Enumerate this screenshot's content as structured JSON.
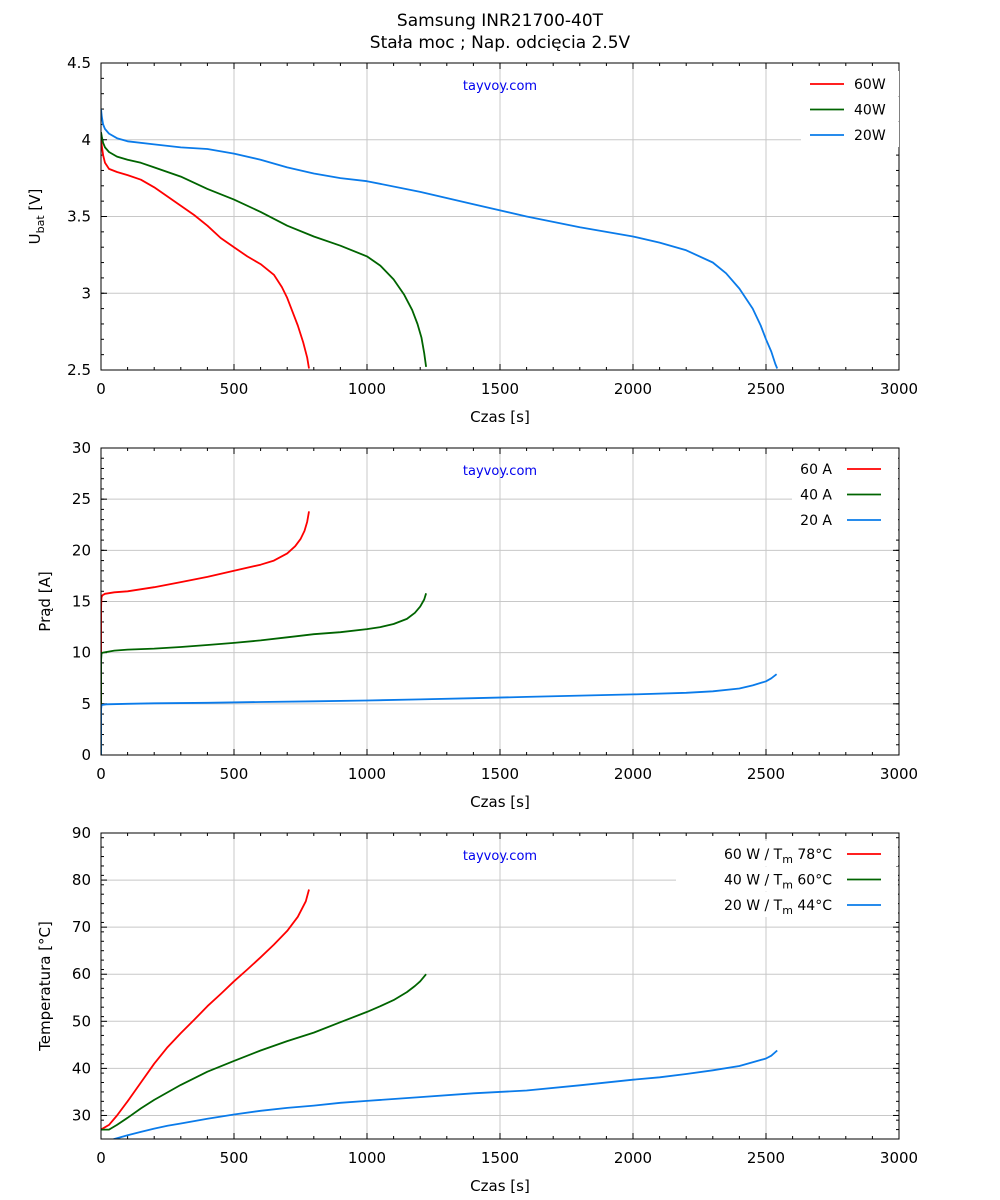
{
  "title_line1": "Samsung INR21700-40T",
  "title_line2": "Stała moc  ;  Nap. odcięcia 2.5V",
  "colors": {
    "red": "#ff0000",
    "green": "#006400",
    "blue": "#0a7bea",
    "grid": "#c8c8c8",
    "watermark": "#0000ee"
  },
  "chart_data": [
    {
      "type": "line",
      "ylabel_main": "U",
      "ylabel_sub": "bat",
      "ylabel_suffix": " [V]",
      "xlabel": "Czas [s]",
      "watermark": "tayvoy.com",
      "xlim": [
        0,
        3000
      ],
      "ylim": [
        2.5,
        4.5
      ],
      "xticks": [
        0,
        500,
        1000,
        1500,
        2000,
        2500,
        3000
      ],
      "yticks": [
        2.5,
        3,
        3.5,
        4,
        4.5
      ],
      "ytick_labels": [
        "2.5",
        "3",
        "3.5",
        "4",
        "4.5"
      ],
      "grid": true,
      "legend_position": "top-right",
      "series": [
        {
          "name": "60W",
          "color": "red",
          "x": [
            0,
            3,
            8,
            15,
            30,
            60,
            100,
            150,
            200,
            250,
            300,
            350,
            400,
            450,
            500,
            550,
            600,
            650,
            680,
            700,
            720,
            740,
            760,
            775,
            782
          ],
          "y": [
            4.0,
            3.96,
            3.9,
            3.85,
            3.81,
            3.79,
            3.77,
            3.74,
            3.69,
            3.63,
            3.57,
            3.51,
            3.44,
            3.36,
            3.3,
            3.24,
            3.19,
            3.12,
            3.04,
            2.97,
            2.88,
            2.79,
            2.68,
            2.58,
            2.51
          ]
        },
        {
          "name": "40W",
          "color": "green",
          "x": [
            0,
            3,
            8,
            15,
            30,
            60,
            100,
            150,
            200,
            300,
            400,
            500,
            600,
            700,
            800,
            900,
            1000,
            1050,
            1100,
            1140,
            1170,
            1190,
            1205,
            1215,
            1222
          ],
          "y": [
            4.05,
            4.02,
            3.98,
            3.95,
            3.92,
            3.89,
            3.87,
            3.85,
            3.82,
            3.76,
            3.68,
            3.61,
            3.53,
            3.44,
            3.37,
            3.31,
            3.24,
            3.18,
            3.09,
            2.99,
            2.89,
            2.8,
            2.71,
            2.61,
            2.52
          ]
        },
        {
          "name": "20W",
          "color": "blue",
          "x": [
            0,
            3,
            8,
            15,
            30,
            60,
            100,
            200,
            300,
            400,
            500,
            600,
            700,
            800,
            900,
            1000,
            1200,
            1400,
            1600,
            1800,
            2000,
            2100,
            2200,
            2300,
            2350,
            2400,
            2450,
            2480,
            2500,
            2520,
            2535,
            2542
          ],
          "y": [
            4.2,
            4.15,
            4.1,
            4.07,
            4.04,
            4.01,
            3.99,
            3.97,
            3.95,
            3.94,
            3.91,
            3.87,
            3.82,
            3.78,
            3.75,
            3.73,
            3.66,
            3.58,
            3.5,
            3.43,
            3.37,
            3.33,
            3.28,
            3.2,
            3.13,
            3.03,
            2.9,
            2.79,
            2.7,
            2.62,
            2.54,
            2.51
          ]
        }
      ]
    },
    {
      "type": "line",
      "ylabel_main": "Prąd [A]",
      "xlabel": "Czas [s]",
      "watermark": "tayvoy.com",
      "xlim": [
        0,
        3000
      ],
      "ylim": [
        0,
        30
      ],
      "xticks": [
        0,
        500,
        1000,
        1500,
        2000,
        2500,
        3000
      ],
      "yticks": [
        0,
        5,
        10,
        15,
        20,
        25,
        30
      ],
      "ytick_labels": [
        "0",
        "5",
        "10",
        "15",
        "20",
        "25",
        "30"
      ],
      "grid": true,
      "legend_position": "top-right",
      "series": [
        {
          "name": "60 A",
          "color": "red",
          "x": [
            0,
            0.5,
            2,
            5,
            15,
            50,
            100,
            200,
            300,
            400,
            500,
            600,
            650,
            700,
            730,
            750,
            765,
            775,
            782
          ],
          "y": [
            0,
            14.5,
            15.4,
            15.6,
            15.75,
            15.9,
            16.0,
            16.4,
            16.9,
            17.4,
            18.0,
            18.6,
            19.0,
            19.7,
            20.4,
            21.1,
            21.9,
            22.8,
            23.8
          ]
        },
        {
          "name": "40 A",
          "color": "green",
          "x": [
            0,
            0.5,
            2,
            5,
            15,
            50,
            100,
            200,
            300,
            400,
            500,
            600,
            700,
            800,
            900,
            1000,
            1050,
            1100,
            1150,
            1180,
            1200,
            1215,
            1222
          ],
          "y": [
            0,
            9.3,
            9.9,
            10.0,
            10.05,
            10.2,
            10.3,
            10.4,
            10.55,
            10.75,
            10.95,
            11.2,
            11.5,
            11.8,
            12.0,
            12.3,
            12.5,
            12.8,
            13.3,
            13.9,
            14.5,
            15.2,
            15.8
          ]
        },
        {
          "name": "20 A",
          "color": "blue",
          "x": [
            0,
            0.5,
            2,
            5,
            20,
            100,
            200,
            400,
            600,
            800,
            1000,
            1200,
            1400,
            1600,
            1800,
            2000,
            2200,
            2300,
            2400,
            2450,
            2500,
            2520,
            2540
          ],
          "y": [
            0,
            4.5,
            4.85,
            4.9,
            4.95,
            5.0,
            5.05,
            5.1,
            5.18,
            5.25,
            5.33,
            5.43,
            5.55,
            5.68,
            5.8,
            5.92,
            6.08,
            6.22,
            6.5,
            6.8,
            7.2,
            7.5,
            7.9
          ]
        }
      ]
    },
    {
      "type": "line",
      "ylabel_main": "Temperatura [°C]",
      "xlabel": "Czas [s]",
      "watermark": "tayvoy.com",
      "xlim": [
        0,
        3000
      ],
      "ylim": [
        25,
        90
      ],
      "xticks": [
        0,
        500,
        1000,
        1500,
        2000,
        2500,
        3000
      ],
      "yticks": [
        30,
        40,
        50,
        60,
        70,
        80,
        90
      ],
      "ytick_labels": [
        "30",
        "40",
        "50",
        "60",
        "70",
        "80",
        "90"
      ],
      "grid": true,
      "legend_position": "top-right",
      "series": [
        {
          "name": "60 W  / T",
          "name_sub": "m",
          "name_suffix": " 78°C",
          "color": "red",
          "x": [
            0,
            30,
            60,
            100,
            150,
            200,
            250,
            300,
            350,
            400,
            450,
            500,
            550,
            600,
            650,
            700,
            740,
            770,
            782
          ],
          "y": [
            27,
            28,
            30,
            33,
            37,
            41,
            44.5,
            47.5,
            50.3,
            53.2,
            55.8,
            58.5,
            61,
            63.6,
            66.3,
            69.2,
            72.2,
            75.5,
            78
          ]
        },
        {
          "name": "40 W  / T",
          "name_sub": "m",
          "name_suffix": " 60°C",
          "color": "green",
          "x": [
            0,
            30,
            60,
            100,
            150,
            200,
            300,
            400,
            500,
            600,
            700,
            800,
            900,
            1000,
            1050,
            1100,
            1150,
            1180,
            1200,
            1222
          ],
          "y": [
            27,
            27,
            28,
            29.5,
            31.5,
            33.3,
            36.5,
            39.3,
            41.6,
            43.8,
            45.8,
            47.6,
            49.8,
            52,
            53.2,
            54.5,
            56.2,
            57.5,
            58.5,
            60
          ]
        },
        {
          "name": "20 W  / T",
          "name_sub": "m",
          "name_suffix": " 44°C",
          "color": "blue",
          "x": [
            0,
            50,
            100,
            150,
            200,
            250,
            300,
            400,
            500,
            600,
            700,
            800,
            900,
            1000,
            1200,
            1400,
            1600,
            1800,
            2000,
            2100,
            2200,
            2300,
            2400,
            2450,
            2500,
            2520,
            2542
          ],
          "y": [
            24,
            25,
            25.8,
            26.5,
            27.2,
            27.8,
            28.3,
            29.3,
            30.2,
            31,
            31.6,
            32.1,
            32.7,
            33.1,
            33.9,
            34.7,
            35.3,
            36.4,
            37.6,
            38.1,
            38.8,
            39.6,
            40.5,
            41.3,
            42.1,
            42.7,
            43.8
          ]
        }
      ]
    }
  ]
}
